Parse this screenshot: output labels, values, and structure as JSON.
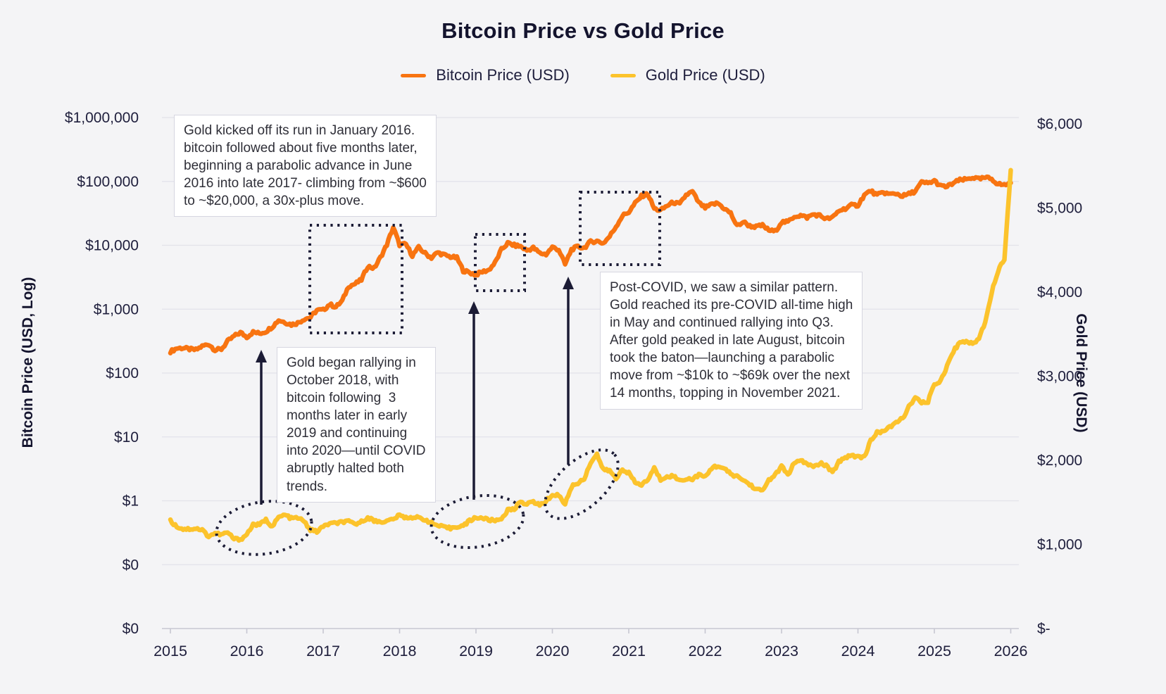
{
  "chart": {
    "title": "Bitcoin Price vs Gold Price",
    "background_color": "#F4F4F6",
    "legend": [
      {
        "label": "Bitcoin Price (USD)",
        "color": "#F87411"
      },
      {
        "label": "Gold Price (USD)",
        "color": "#FCC32C"
      }
    ]
  },
  "axes": {
    "left": {
      "title": "Bitcoin Price (USD, Log)",
      "ticks": [
        "$1,000,000",
        "$100,000",
        "$10,000",
        "$1,000",
        "$100",
        "$10",
        "$1",
        "$0",
        "$0"
      ]
    },
    "right": {
      "title": "Gold Price (USD)",
      "ticks": [
        "$6,000",
        "$5,000",
        "$4,000",
        "$3,000",
        "$2,000",
        "$1,000",
        "$-"
      ]
    },
    "x": {
      "ticks": [
        "2015",
        "2016",
        "2017",
        "2018",
        "2019",
        "2020",
        "2021",
        "2022",
        "2023",
        "2024",
        "2025",
        "2026"
      ]
    }
  },
  "annotations": {
    "box1": {
      "text": "Gold kicked off its run in January 2016.\nbitcoin followed about five months later,\nbeginning a parabolic advance in June\n2016 into late 2017- climbing from ~$600\nto ~$20,000, a 30x-plus move."
    },
    "box2": {
      "text": "Gold began rallying in\nOctober 2018, with\nbitcoin following  3\nmonths later in early\n2019 and continuing\ninto 2020—until COVID\nabruptly halted both\ntrends."
    },
    "box3": {
      "text": "Post-COVID, we saw a similar pattern.\nGold reached its pre-COVID all-time high\nin May and continued rallying into Q3.\nAfter gold peaked in late August, bitcoin\ntook the baton—launching a parabolic\nmove from ~$10k to ~$69k over the next\n14 months, topping in November 2021."
    }
  },
  "chart_data": {
    "type": "line",
    "x_start_year": 2015,
    "x_step_months": 1,
    "x_range": [
      2015,
      2026
    ],
    "grid": true,
    "left_axis_scale": "log",
    "left_axis_range": [
      1,
      1000000
    ],
    "right_axis_scale": "linear",
    "right_axis_range": [
      0,
      6000
    ],
    "series": [
      {
        "name": "Bitcoin Price (USD)",
        "axis": "left-log",
        "color": "#F87411",
        "values": [
          217,
          244,
          247,
          236,
          230,
          263,
          284,
          230,
          236,
          314,
          377,
          430,
          368,
          437,
          416,
          448,
          531,
          673,
          624,
          573,
          609,
          700,
          742,
          963,
          965,
          1190,
          1080,
          1350,
          2300,
          2480,
          2875,
          4703,
          4360,
          6450,
          10230,
          19100,
          10200,
          10360,
          6930,
          9240,
          7500,
          6400,
          7730,
          7030,
          6600,
          6350,
          4020,
          3740,
          3460,
          3850,
          4100,
          5320,
          8550,
          10800,
          10000,
          9600,
          8300,
          9150,
          7550,
          7200,
          9350,
          8550,
          5000,
          8620,
          9450,
          9140,
          11350,
          11650,
          10780,
          13800,
          19700,
          28990,
          33100,
          45240,
          58800,
          63500,
          37330,
          35040,
          41550,
          47100,
          43790,
          61300,
          69000,
          46200,
          38480,
          43190,
          45540,
          37650,
          31790,
          19985,
          23340,
          20050,
          19430,
          20490,
          17160,
          16540,
          23130,
          23140,
          28480,
          29230,
          27220,
          30480,
          29230,
          25930,
          26960,
          34660,
          37720,
          42270,
          42580,
          61200,
          71330,
          60640,
          67540,
          62680,
          64620,
          58970,
          63330,
          70220,
          96450,
          93430,
          102400,
          84350,
          82550,
          94180,
          104600,
          107100,
          115800,
          108200,
          114000,
          110000,
          91000,
          88000,
          95000
        ]
      },
      {
        "name": "Gold Price (USD)",
        "axis": "right-linear",
        "color": "#FCC32C",
        "values": [
          1280,
          1213,
          1183,
          1184,
          1190,
          1172,
          1096,
          1135,
          1115,
          1142,
          1065,
          1060,
          1118,
          1238,
          1233,
          1293,
          1213,
          1322,
          1351,
          1309,
          1317,
          1273,
          1173,
          1152,
          1212,
          1249,
          1249,
          1268,
          1269,
          1242,
          1269,
          1321,
          1280,
          1271,
          1275,
          1303,
          1345,
          1318,
          1325,
          1315,
          1298,
          1253,
          1224,
          1202,
          1192,
          1215,
          1220,
          1282,
          1321,
          1313,
          1292,
          1283,
          1306,
          1409,
          1414,
          1520,
          1472,
          1513,
          1464,
          1517,
          1589,
          1586,
          1480,
          1686,
          1730,
          1781,
          1976,
          2070,
          1886,
          1879,
          1777,
          1898,
          1848,
          1734,
          1708,
          1769,
          1907,
          1770,
          1814,
          1814,
          1757,
          1783,
          1775,
          1829,
          1797,
          1909,
          1937,
          1897,
          1837,
          1807,
          1766,
          1711,
          1661,
          1634,
          1769,
          1824,
          1928,
          1827,
          1969,
          1990,
          1963,
          1919,
          1965,
          1940,
          1849,
          1984,
          2036,
          2063,
          2040,
          2044,
          2230,
          2330,
          2350,
          2390,
          2450,
          2500,
          2635,
          2744,
          2680,
          2700,
          2900,
          2950,
          3120,
          3300,
          3400,
          3420,
          3380,
          3450,
          3650,
          4000,
          4250,
          4400,
          5450
        ]
      }
    ]
  }
}
